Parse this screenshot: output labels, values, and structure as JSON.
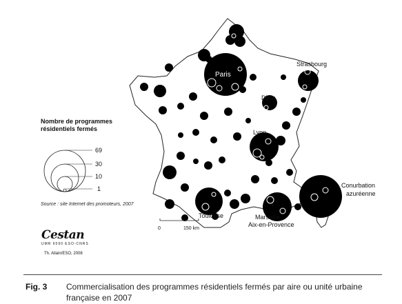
{
  "legend": {
    "title_line1": "Nombre de programmes",
    "title_line2": "résidentiels fermés",
    "values": [
      "69",
      "30",
      "10",
      "1"
    ]
  },
  "source": "Source : site Internet des promoteurs, 2007",
  "scale": {
    "start": "0",
    "end": "150 km"
  },
  "cities": {
    "paris": "Paris",
    "strasbourg": "Strasbourg",
    "dijon": "Dijon",
    "lyon": "Lyon",
    "toulouse": "Toulouse",
    "marseille_line1": "Marseille",
    "marseille_line2": "Aix-en-Provence",
    "conurbation_line1": "Conurbation",
    "conurbation_line2": "azuréenne"
  },
  "logo": {
    "name": "Cestan",
    "subtitle": "UMR 6590 ESO-CNRS",
    "credit": "Th. Allain/ESO, 2008"
  },
  "figure": {
    "label": "Fig. 3",
    "caption_line1": "Commercialisation des programmes résidentiels fermés par aire ou unité urbaine",
    "caption_line2": "française en 2007"
  },
  "colors": {
    "symbol": "#000000",
    "map_outline": "#222222",
    "background": "#ffffff"
  }
}
